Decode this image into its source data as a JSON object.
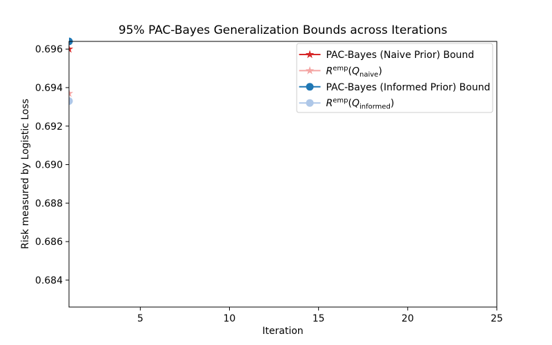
{
  "chart_data": {
    "type": "line",
    "title": "95% PAC-Bayes Generalization Bounds across Iterations",
    "xlabel": "Iteration",
    "ylabel": "Risk measured by Logistic Loss",
    "xlim": [
      1,
      25
    ],
    "ylim": [
      0.6826,
      0.6964
    ],
    "xticks": [
      5,
      10,
      15,
      20,
      25
    ],
    "xtick_labels": [
      "5",
      "10",
      "15",
      "20",
      "25"
    ],
    "yticks": [
      0.684,
      0.686,
      0.688,
      0.69,
      0.692,
      0.694,
      0.696
    ],
    "ytick_labels": [
      "0.684",
      "0.686",
      "0.688",
      "0.690",
      "0.692",
      "0.694",
      "0.696"
    ],
    "grid": false,
    "legend_position": "upper right",
    "axis_color": "#000000",
    "legend_border_color": "#cccccc",
    "legend_background": "#ffffff",
    "x": [
      1
    ],
    "series": [
      {
        "key": "naive_bound",
        "name": "PAC-Bayes (Naive Prior) Bound",
        "values": [
          0.696
        ],
        "color": "#d62728",
        "marker": "star",
        "label_segments": [
          {
            "t": "PAC-Bayes (Naive Prior) Bound",
            "style": "normal"
          }
        ]
      },
      {
        "key": "naive_emp",
        "name": "R^emp(Q_naive)",
        "values": [
          0.6937
        ],
        "color": "#f4a5a3",
        "marker": "star",
        "label_segments": [
          {
            "t": "R",
            "style": "italic"
          },
          {
            "t": "emp",
            "style": "sup"
          },
          {
            "t": "(",
            "style": "normal"
          },
          {
            "t": "Q",
            "style": "italic"
          },
          {
            "t": "naive",
            "style": "sub"
          },
          {
            "t": ")",
            "style": "normal"
          }
        ]
      },
      {
        "key": "informed_bound",
        "name": "PAC-Bayes (Informed Prior) Bound",
        "values": [
          0.6964
        ],
        "color": "#1f77b4",
        "marker": "circle",
        "label_segments": [
          {
            "t": "PAC-Bayes (Informed Prior) Bound",
            "style": "normal"
          }
        ]
      },
      {
        "key": "informed_emp",
        "name": "R^emp(Q_informed)",
        "values": [
          0.6933
        ],
        "color": "#aec7e8",
        "marker": "circle",
        "label_segments": [
          {
            "t": "R",
            "style": "italic"
          },
          {
            "t": "emp",
            "style": "sup"
          },
          {
            "t": "(",
            "style": "normal"
          },
          {
            "t": "Q",
            "style": "italic"
          },
          {
            "t": "informed",
            "style": "sub"
          },
          {
            "t": ")",
            "style": "normal"
          }
        ]
      }
    ]
  }
}
